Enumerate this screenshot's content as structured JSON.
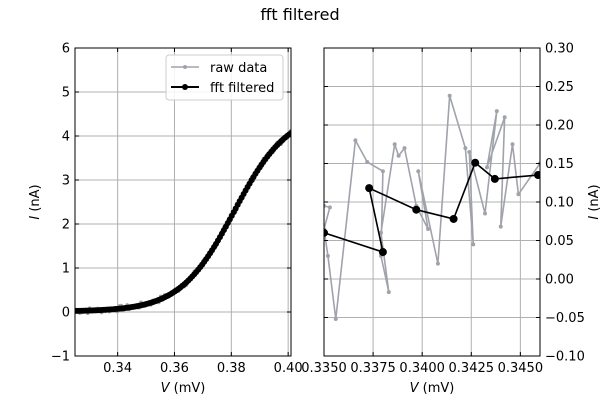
{
  "figure": {
    "title": "fft filtered"
  },
  "colors": {
    "raw": "#a0a3ab",
    "filtered": "#000000",
    "grid": "#b0b0b0"
  },
  "chart_data": [
    {
      "type": "line",
      "xlabel_var": "V",
      "xlabel_unit": " (mV)",
      "ylabel_var": "I",
      "ylabel_unit": " (nA)",
      "xlim": [
        0.325,
        0.401
      ],
      "ylim": [
        -1,
        6
      ],
      "xticks": [
        0.34,
        0.36,
        0.38,
        0.4
      ],
      "xtick_labels": [
        "0.34",
        "0.36",
        "0.38",
        "0.40"
      ],
      "yticks": [
        -1,
        0,
        1,
        2,
        3,
        4,
        5,
        6
      ],
      "ytick_labels": [
        "−1",
        "0",
        "1",
        "2",
        "3",
        "4",
        "5",
        "6"
      ],
      "grid": true,
      "legend": {
        "placement": "top-right",
        "entries": [
          "raw data",
          "fft filtered"
        ]
      },
      "series": [
        {
          "name": "raw data",
          "style": "gray-dots-line",
          "curve": "sigmoid-noisy"
        },
        {
          "name": "fft filtered",
          "style": "black-line-markers",
          "curve": "sigmoid"
        }
      ]
    },
    {
      "type": "line",
      "xlabel_var": "V",
      "xlabel_unit": " (mV)",
      "ylabel_var": "I",
      "ylabel_unit": " (nA)",
      "xlim": [
        0.335,
        0.346
      ],
      "ylim": [
        -0.1,
        0.3
      ],
      "xticks": [
        0.335,
        0.3375,
        0.34,
        0.3425,
        0.345
      ],
      "xtick_labels": [
        "0.3350",
        "0.3375",
        "0.3400",
        "0.3425",
        "0.3450"
      ],
      "yticks": [
        -0.1,
        -0.05,
        0.0,
        0.05,
        0.1,
        0.15,
        0.2,
        0.25,
        0.3
      ],
      "ytick_labels": [
        "−0.10",
        "−0.05",
        "0.00",
        "0.05",
        "0.10",
        "0.15",
        "0.20",
        "0.25",
        "0.30"
      ],
      "y_axis_side": "right",
      "grid": true,
      "series": [
        {
          "name": "raw data",
          "x": [
            0.335,
            0.3353,
            0.335,
            0.3352,
            0.3356,
            0.3366,
            0.3372,
            0.338,
            0.3379,
            0.3383,
            0.3379,
            0.3386,
            0.3388,
            0.3391,
            0.3397,
            0.3403,
            0.3398,
            0.3408,
            0.3414,
            0.3422,
            0.3426,
            0.3424,
            0.3432,
            0.3438,
            0.3433,
            0.3442,
            0.344,
            0.3446,
            0.3449,
            0.346
          ],
          "y": [
            0.095,
            0.093,
            0.065,
            0.03,
            -0.052,
            0.18,
            0.152,
            0.14,
            0.03,
            -0.017,
            0.06,
            0.175,
            0.16,
            0.17,
            0.095,
            0.065,
            0.14,
            0.02,
            0.238,
            0.17,
            0.045,
            0.165,
            0.085,
            0.218,
            0.145,
            0.21,
            0.068,
            0.175,
            0.11,
            0.15
          ]
        },
        {
          "name": "fft filtered",
          "x": [
            0.335,
            0.338,
            0.3373,
            0.3397,
            0.3416,
            0.3427,
            0.3437,
            0.3459
          ],
          "y": [
            0.06,
            0.035,
            0.118,
            0.09,
            0.078,
            0.151,
            0.13,
            0.135
          ]
        }
      ]
    }
  ]
}
